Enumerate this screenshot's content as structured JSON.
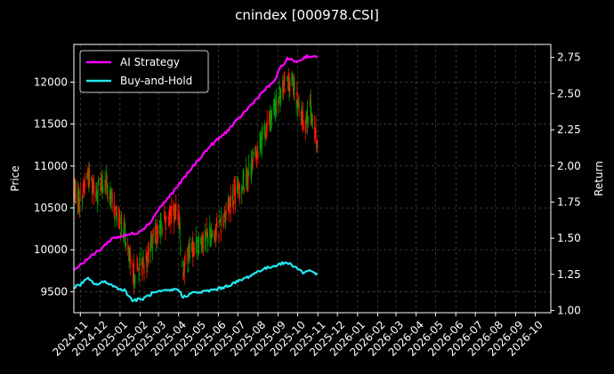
{
  "chart_data": {
    "type": "line",
    "title": "cnindex [000978.CSI]",
    "ylabel_left": "Price",
    "ylabel_right": "Return",
    "grid": true,
    "legend_position": "top-left",
    "x_ticks": [
      "2024-11",
      "2024-12",
      "2025-01",
      "2025-02",
      "2025-03",
      "2025-04",
      "2025-05",
      "2025-06",
      "2025-07",
      "2025-08",
      "2025-09",
      "2025-10",
      "2025-11",
      "2025-12",
      "2026-01",
      "2026-02",
      "2026-03",
      "2026-04",
      "2026-05",
      "2026-06",
      "2026-07",
      "2026-08",
      "2026-09",
      "2026-10"
    ],
    "y_left_ticks": [
      9500,
      10000,
      10500,
      11000,
      11500,
      12000
    ],
    "y_left_ticks_text": [
      "9500",
      "10000",
      "10500",
      "11000",
      "11500",
      "12000"
    ],
    "y_right_ticks": [
      1.0,
      1.25,
      1.5,
      1.75,
      2.0,
      2.25,
      2.5,
      2.75
    ],
    "y_right_ticks_text": [
      "1.00",
      "1.25",
      "1.50",
      "1.75",
      "2.00",
      "2.25",
      "2.50",
      "2.75"
    ],
    "colors": {
      "up": "#00a000",
      "down": "#ff1a00",
      "ai": "#ff00ff",
      "bh": "#22e8f0",
      "grid": "#555555",
      "background": "#000000"
    },
    "price_keypoints": [
      [
        "2024-10-22",
        10700
      ],
      [
        "2024-11-01",
        10600
      ],
      [
        "2024-11-12",
        10900
      ],
      [
        "2024-11-25",
        10700
      ],
      [
        "2024-12-10",
        10800
      ],
      [
        "2024-12-25",
        10450
      ],
      [
        "2025-01-08",
        10200
      ],
      [
        "2025-01-20",
        9700
      ],
      [
        "2025-02-05",
        9800
      ],
      [
        "2025-02-20",
        10100
      ],
      [
        "2025-03-05",
        10300
      ],
      [
        "2025-03-20",
        10400
      ],
      [
        "2025-04-01",
        10450
      ],
      [
        "2025-04-07",
        9750
      ],
      [
        "2025-04-20",
        10000
      ],
      [
        "2025-05-10",
        10150
      ],
      [
        "2025-06-01",
        10250
      ],
      [
        "2025-06-15",
        10500
      ],
      [
        "2025-07-01",
        10700
      ],
      [
        "2025-07-20",
        10950
      ],
      [
        "2025-08-05",
        11300
      ],
      [
        "2025-08-20",
        11550
      ],
      [
        "2025-09-01",
        11800
      ],
      [
        "2025-09-15",
        12050
      ],
      [
        "2025-09-25",
        11900
      ],
      [
        "2025-10-10",
        11500
      ],
      [
        "2025-10-20",
        11700
      ],
      [
        "2025-10-31",
        11250
      ]
    ],
    "series": [
      {
        "name": "AI Strategy",
        "axis": "right",
        "points": [
          [
            "2024-10-22",
            1.28
          ],
          [
            "2024-11-10",
            1.35
          ],
          [
            "2024-12-01",
            1.42
          ],
          [
            "2024-12-20",
            1.5
          ],
          [
            "2025-01-10",
            1.52
          ],
          [
            "2025-01-28",
            1.54
          ],
          [
            "2025-02-15",
            1.6
          ],
          [
            "2025-03-01",
            1.7
          ],
          [
            "2025-03-20",
            1.8
          ],
          [
            "2025-04-10",
            1.92
          ],
          [
            "2025-05-01",
            2.04
          ],
          [
            "2025-05-20",
            2.14
          ],
          [
            "2025-06-10",
            2.22
          ],
          [
            "2025-07-01",
            2.32
          ],
          [
            "2025-07-25",
            2.44
          ],
          [
            "2025-08-10",
            2.52
          ],
          [
            "2025-08-25",
            2.58
          ],
          [
            "2025-09-05",
            2.68
          ],
          [
            "2025-09-15",
            2.74
          ],
          [
            "2025-10-01",
            2.72
          ],
          [
            "2025-10-15",
            2.76
          ],
          [
            "2025-10-31",
            2.75
          ]
        ]
      },
      {
        "name": "Buy-and-Hold",
        "axis": "right",
        "points": [
          [
            "2024-10-22",
            1.16
          ],
          [
            "2024-11-01",
            1.18
          ],
          [
            "2024-11-12",
            1.22
          ],
          [
            "2024-11-25",
            1.18
          ],
          [
            "2024-12-10",
            1.2
          ],
          [
            "2024-12-25",
            1.16
          ],
          [
            "2025-01-08",
            1.14
          ],
          [
            "2025-01-20",
            1.07
          ],
          [
            "2025-02-05",
            1.08
          ],
          [
            "2025-02-20",
            1.12
          ],
          [
            "2025-03-05",
            1.13
          ],
          [
            "2025-03-20",
            1.14
          ],
          [
            "2025-04-01",
            1.15
          ],
          [
            "2025-04-07",
            1.09
          ],
          [
            "2025-04-20",
            1.12
          ],
          [
            "2025-05-10",
            1.13
          ],
          [
            "2025-06-01",
            1.15
          ],
          [
            "2025-06-15",
            1.17
          ],
          [
            "2025-07-01",
            1.2
          ],
          [
            "2025-07-20",
            1.24
          ],
          [
            "2025-08-05",
            1.28
          ],
          [
            "2025-08-20",
            1.3
          ],
          [
            "2025-09-01",
            1.32
          ],
          [
            "2025-09-15",
            1.33
          ],
          [
            "2025-09-25",
            1.31
          ],
          [
            "2025-10-10",
            1.26
          ],
          [
            "2025-10-20",
            1.28
          ],
          [
            "2025-10-31",
            1.25
          ]
        ]
      }
    ]
  }
}
